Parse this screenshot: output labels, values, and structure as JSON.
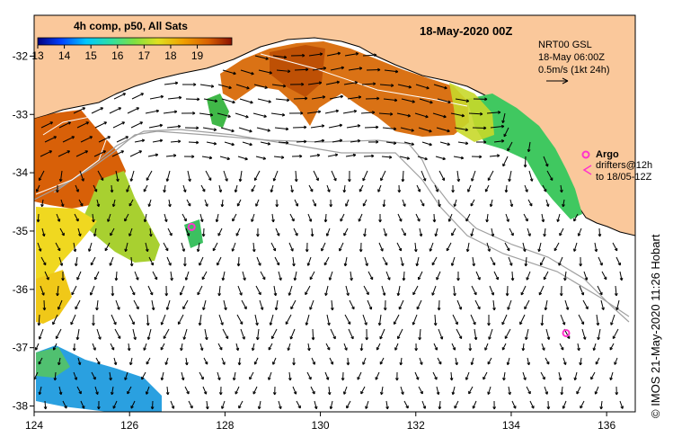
{
  "title": "18-May-2020 00Z",
  "colorbar": {
    "title": "4h comp, p50, All Sats",
    "tick_labels": [
      "13",
      "14",
      "15",
      "16",
      "17",
      "18",
      "19"
    ],
    "min": 13,
    "max": 20.3
  },
  "model_info": {
    "line1": "NRT00 GSL",
    "line2": "18-May 06:00Z",
    "line3": "0.5m/s (1kt 24h)"
  },
  "legend": {
    "argo_label": "Argo",
    "drifters_line1": "drifters@12h",
    "drifters_line2": "to 18/05-12Z"
  },
  "credit": "©  IMOS 21-May-2020 11:26 Hobart",
  "axes": {
    "lon_min": 124,
    "lon_max": 136.6,
    "lat_min": -38.1,
    "lat_max": -31.3,
    "x_ticks": [
      "124",
      "126",
      "128",
      "130",
      "132",
      "134",
      "136"
    ],
    "y_ticks": [
      "-32",
      "-33",
      "-34",
      "-35",
      "-36",
      "-37",
      "-38"
    ]
  },
  "argo_floats": [
    {
      "lon": 127.3,
      "lat": -34.93
    },
    {
      "lon": 135.15,
      "lat": -36.75
    }
  ],
  "colors": {
    "land": "#fac89b",
    "sea": "#ffffff",
    "vector": "#000000",
    "argo": "#ff33cc",
    "isobath": "#a0a0a0",
    "coast_line": "#000000"
  }
}
